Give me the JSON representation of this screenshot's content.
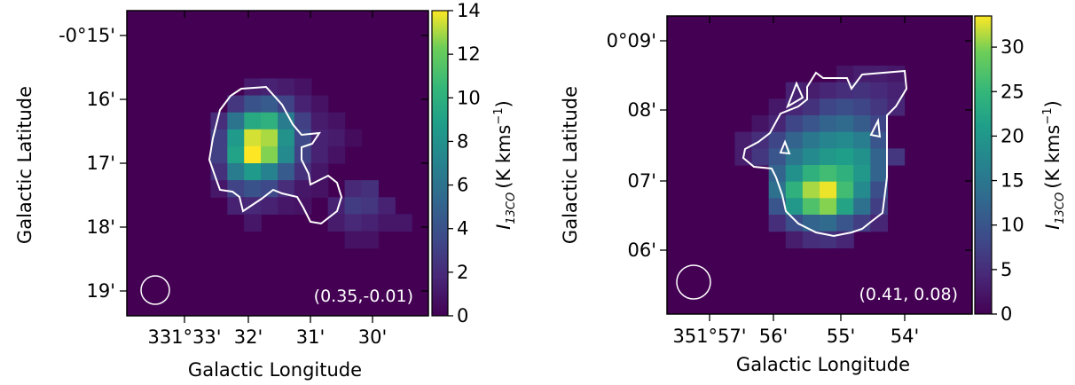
{
  "chart_data": [
    {
      "type": "heatmap",
      "xlabel": "Galactic Longitude",
      "ylabel": "Galactic Latitude",
      "colorbar_label_main": "I",
      "colorbar_label_sub": "13CO",
      "colorbar_label_unit": "(K kms",
      "colorbar_label_exp": "−1",
      "colorbar_label_close": ")",
      "x_ticks": [
        "331°33'",
        "32'",
        "31'",
        "30'"
      ],
      "y_ticks": [
        "-0°15'",
        "16'",
        "17'",
        "18'",
        "19'"
      ],
      "colorbar_ticks": [
        "0",
        "2",
        "4",
        "6",
        "8",
        "10",
        "12",
        "14"
      ],
      "colorbar_range": [
        0,
        14
      ],
      "annotation": "(0.35,-0.01)",
      "colormap": "viridis",
      "background_value": 0,
      "contour_color": "#ffffff",
      "beam": "circle, lower-left",
      "grid": [
        [
          0,
          0,
          0,
          0,
          0,
          0,
          0,
          0,
          0,
          0,
          0,
          0,
          0,
          0,
          0,
          0,
          0,
          0
        ],
        [
          0,
          0,
          0,
          0,
          0,
          0,
          0,
          0,
          0,
          0,
          0,
          0,
          0,
          0,
          0,
          0,
          0,
          0
        ],
        [
          0,
          0,
          0,
          0,
          0,
          0,
          0,
          0,
          0,
          0,
          0,
          0,
          0,
          0,
          0,
          0,
          0,
          0
        ],
        [
          0,
          0,
          0,
          0,
          0,
          0,
          0,
          0,
          0,
          0,
          0,
          0,
          0,
          0,
          0,
          0,
          0,
          0
        ],
        [
          0,
          0,
          0,
          0,
          0,
          0,
          0,
          1.2,
          1.5,
          1.2,
          0.8,
          0,
          0,
          0,
          0,
          0,
          0,
          0
        ],
        [
          0,
          0,
          0,
          0,
          0,
          0,
          2.5,
          4.0,
          4.5,
          3.2,
          1.5,
          0.8,
          0,
          0,
          0,
          0,
          0,
          0
        ],
        [
          0,
          0,
          0,
          0,
          0,
          2.0,
          6.0,
          9.5,
          10.0,
          6.5,
          3.0,
          1.2,
          0.8,
          0,
          0,
          0,
          0,
          0
        ],
        [
          0,
          0,
          0,
          0,
          0,
          3.0,
          8.5,
          13.5,
          13.0,
          8.0,
          3.5,
          1.5,
          1.2,
          0.5,
          0,
          0,
          0,
          0
        ],
        [
          0,
          0,
          0,
          0,
          0,
          3.0,
          9.0,
          14.0,
          12.5,
          7.5,
          3.2,
          1.5,
          0.8,
          0,
          0,
          0,
          0,
          0
        ],
        [
          0,
          0,
          0,
          0,
          0,
          2.2,
          6.5,
          8.5,
          7.0,
          4.5,
          2.2,
          1.0,
          0,
          0,
          0,
          0,
          0,
          0
        ],
        [
          0,
          0,
          0,
          0,
          0,
          1.0,
          3.2,
          4.0,
          3.5,
          2.0,
          1.0,
          0.8,
          0,
          1.8,
          2.2,
          0,
          0,
          0
        ],
        [
          0,
          0,
          0,
          0,
          0,
          0,
          1.5,
          1.8,
          1.5,
          1.0,
          0.8,
          0,
          1.5,
          2.8,
          2.5,
          1.5,
          0,
          0
        ],
        [
          0,
          0,
          0,
          0,
          0,
          0,
          0,
          1.0,
          0,
          0,
          0,
          0,
          1.2,
          1.8,
          1.5,
          1.0,
          1.0,
          0
        ],
        [
          0,
          0,
          0,
          0,
          0,
          0,
          0,
          0,
          0,
          0,
          0,
          0,
          0,
          0.8,
          0.8,
          0,
          0,
          0
        ],
        [
          0,
          0,
          0,
          0,
          0,
          0,
          0,
          0,
          0,
          0,
          0,
          0,
          0,
          0,
          0,
          0,
          0,
          0
        ],
        [
          0,
          0,
          0,
          0,
          0,
          0,
          0,
          0,
          0,
          0,
          0,
          0,
          0,
          0,
          0,
          0,
          0,
          0
        ],
        [
          0,
          0,
          0,
          0,
          0,
          0,
          0,
          0,
          0,
          0,
          0,
          0,
          0,
          0,
          0,
          0,
          0,
          0
        ],
        [
          0,
          0,
          0,
          0,
          0,
          0,
          0,
          0,
          0,
          0,
          0,
          0,
          0,
          0,
          0,
          0,
          0,
          0
        ]
      ]
    },
    {
      "type": "heatmap",
      "xlabel": "Galactic Longitude",
      "ylabel": "Galactic Latitude",
      "colorbar_label_main": "I",
      "colorbar_label_sub": "13CO",
      "colorbar_label_unit": "(K kms",
      "colorbar_label_exp": "−1",
      "colorbar_label_close": ")",
      "x_ticks": [
        "351°57'",
        "56'",
        "55'",
        "54'"
      ],
      "y_ticks": [
        "0°09'",
        "08'",
        "07'",
        "06'"
      ],
      "colorbar_ticks": [
        "0",
        "5",
        "10",
        "15",
        "20",
        "25",
        "30"
      ],
      "colorbar_range": [
        0,
        33.5
      ],
      "annotation": "(0.41, 0.08)",
      "colormap": "viridis",
      "background_value": 0,
      "contour_color": "#ffffff",
      "beam": "circle, lower-left",
      "grid": [
        [
          0,
          0,
          0,
          0,
          0,
          0,
          0,
          0,
          0,
          0,
          0,
          0,
          0,
          0,
          0,
          0,
          0,
          0
        ],
        [
          0,
          0,
          0,
          0,
          0,
          0,
          0,
          0,
          0,
          0,
          0,
          0,
          0,
          0,
          0,
          0,
          0,
          0
        ],
        [
          0,
          0,
          0,
          0,
          0,
          0,
          0,
          0,
          0,
          0,
          0,
          0,
          0,
          0,
          0,
          0,
          0,
          0
        ],
        [
          0,
          0,
          0,
          0,
          0,
          0,
          0,
          0,
          0,
          0,
          2.0,
          3.0,
          3.0,
          2.5,
          0,
          0,
          0,
          0
        ],
        [
          0,
          0,
          0,
          0,
          0,
          0,
          0,
          3.5,
          3.0,
          4.0,
          5.0,
          5.5,
          4.5,
          3.5,
          0,
          0,
          0,
          0
        ],
        [
          0,
          0,
          0,
          0,
          0,
          0,
          2.5,
          4.0,
          5.5,
          8.0,
          9.0,
          8.0,
          6.0,
          4.0,
          0,
          0,
          0,
          0
        ],
        [
          0,
          0,
          0,
          0,
          0,
          2.0,
          4.0,
          8.0,
          10.0,
          12.0,
          13.0,
          11.0,
          8.0,
          0,
          0,
          0,
          0,
          0
        ],
        [
          0,
          0,
          0,
          0,
          3.0,
          5.0,
          8.0,
          12.0,
          15.0,
          17.0,
          18.0,
          16.0,
          10.0,
          0,
          0,
          0,
          0,
          0
        ],
        [
          0,
          0,
          0,
          0,
          3.0,
          6.0,
          10.0,
          15.0,
          18.0,
          20.0,
          21.0,
          19.0,
          12.0,
          6.0,
          0,
          0,
          0,
          0
        ],
        [
          0,
          0,
          0,
          0,
          0,
          0,
          12.0,
          19.0,
          24.0,
          26.0,
          24.0,
          20.0,
          12.0,
          0,
          0,
          0,
          0,
          0
        ],
        [
          0,
          0,
          0,
          0,
          0,
          0,
          14.0,
          24.0,
          31.0,
          33.0,
          26.0,
          18.0,
          9.0,
          0,
          0,
          0,
          0,
          0
        ],
        [
          0,
          0,
          0,
          0,
          0,
          0,
          10.0,
          20.0,
          27.0,
          30.0,
          22.0,
          14.0,
          7.0,
          0,
          0,
          0,
          0,
          0
        ],
        [
          0,
          0,
          0,
          0,
          0,
          0,
          5.0,
          9.0,
          12.0,
          13.0,
          10.0,
          7.0,
          4.0,
          0,
          0,
          0,
          0,
          0
        ],
        [
          0,
          0,
          0,
          0,
          0,
          0,
          0,
          3.0,
          5.0,
          5.5,
          4.0,
          0,
          0,
          0,
          0,
          0,
          0,
          0
        ],
        [
          0,
          0,
          0,
          0,
          0,
          0,
          0,
          0,
          0,
          0,
          0,
          0,
          0,
          0,
          0,
          0,
          0,
          0
        ],
        [
          0,
          0,
          0,
          0,
          0,
          0,
          0,
          0,
          0,
          0,
          0,
          0,
          0,
          0,
          0,
          0,
          0,
          0
        ],
        [
          0,
          0,
          0,
          0,
          0,
          0,
          0,
          0,
          0,
          0,
          0,
          0,
          0,
          0,
          0,
          0,
          0,
          0
        ],
        [
          0,
          0,
          0,
          0,
          0,
          0,
          0,
          0,
          0,
          0,
          0,
          0,
          0,
          0,
          0,
          0,
          0,
          0
        ]
      ]
    }
  ]
}
